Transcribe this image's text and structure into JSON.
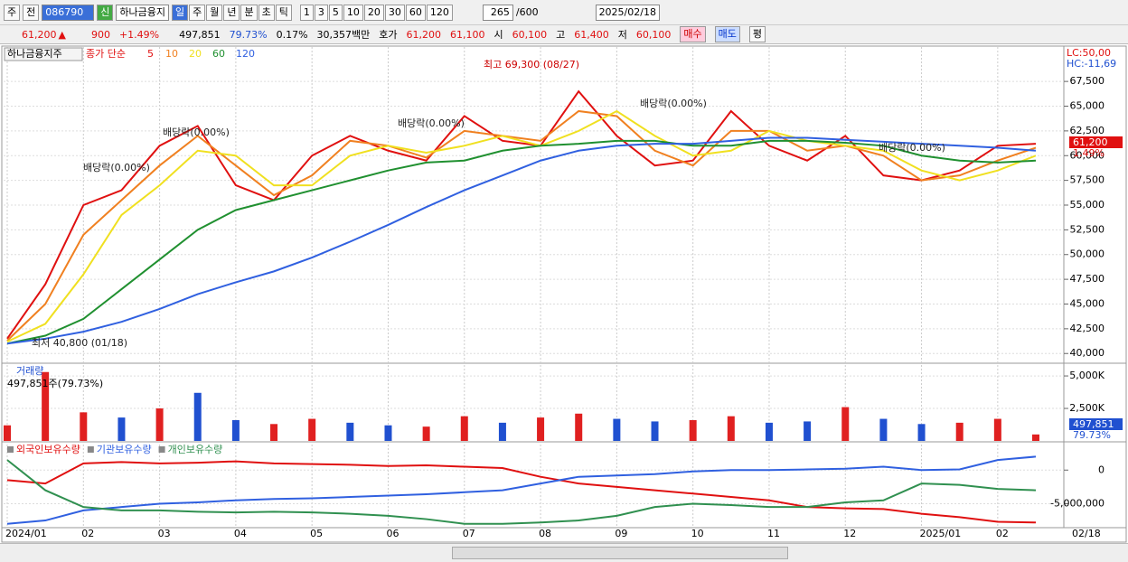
{
  "toolbar": {
    "period": "주",
    "scope": "전",
    "code": "086790",
    "badge": "신",
    "name": "하나금융지",
    "intervals": [
      "일",
      "주",
      "월",
      "년",
      "분",
      "초",
      "틱"
    ],
    "steps": [
      "1",
      "3",
      "5",
      "10",
      "20",
      "30",
      "60",
      "120"
    ],
    "count": "265",
    "max": "/600",
    "date": "2025/02/18"
  },
  "quote_bar": {
    "price": "61,200",
    "arrow": "▲",
    "change": "900",
    "rate": "+1.49%",
    "volume": "497,851",
    "volume_rate": "79.73%",
    "turnover": "0.17%",
    "amount": "30,357백만",
    "ask_label": "호가",
    "ask": "61,200",
    "bid": "61,100",
    "open_label": "시",
    "open": "60,100",
    "high_label": "고",
    "high": "61,400",
    "low_label": "저",
    "low": "60,100",
    "buy": "매수",
    "sell": "매도",
    "avg": "평"
  },
  "chart_data": [
    {
      "type": "line",
      "title": "하나금융지주",
      "legend_prefix": "종가 단순",
      "categories": [
        "2024/01",
        null,
        "02",
        null,
        "03",
        null,
        "04",
        null,
        "05",
        null,
        "06",
        null,
        "07",
        null,
        "08",
        null,
        "09",
        null,
        "10",
        null,
        "11",
        null,
        "12",
        null,
        "2025/01",
        null,
        "02",
        null
      ],
      "last_date": "02/18",
      "series": [
        {
          "name": "5",
          "color": "#e01010",
          "values": [
            41500,
            47000,
            55000,
            56500,
            61000,
            63000,
            57000,
            55500,
            60000,
            62000,
            60500,
            59500,
            64000,
            61500,
            61000,
            66500,
            62000,
            59000,
            59500,
            64500,
            61000,
            59500,
            62000,
            58000,
            57500,
            58500,
            61000,
            61200
          ]
        },
        {
          "name": "10",
          "color": "#f08020",
          "values": [
            41300,
            45000,
            52000,
            55500,
            59000,
            62000,
            59000,
            56000,
            58000,
            61500,
            61000,
            59800,
            62500,
            62000,
            61500,
            64500,
            64000,
            60500,
            59000,
            62500,
            62500,
            60500,
            61000,
            60000,
            57500,
            58000,
            59500,
            60800
          ]
        },
        {
          "name": "20",
          "color": "#f0e020",
          "values": [
            41200,
            43000,
            48000,
            54000,
            57000,
            60500,
            60000,
            57000,
            57000,
            60000,
            61000,
            60300,
            61000,
            62000,
            61000,
            62500,
            64500,
            62000,
            60000,
            60500,
            62500,
            61500,
            61000,
            60500,
            58500,
            57500,
            58500,
            60000
          ]
        },
        {
          "name": "60",
          "color": "#209030",
          "values": [
            41000,
            41800,
            43500,
            46500,
            49500,
            52500,
            54500,
            55500,
            56500,
            57500,
            58500,
            59300,
            59500,
            60500,
            61000,
            61200,
            61500,
            61500,
            61000,
            61000,
            61500,
            61500,
            61300,
            61000,
            60000,
            59500,
            59300,
            59500
          ]
        },
        {
          "name": "120",
          "color": "#3060e0",
          "values": [
            41000,
            41500,
            42200,
            43200,
            44500,
            46000,
            47200,
            48300,
            49700,
            51300,
            53000,
            54800,
            56500,
            58000,
            59500,
            60500,
            61000,
            61200,
            61200,
            61500,
            61800,
            61800,
            61600,
            61400,
            61200,
            61000,
            60800,
            60500
          ]
        }
      ],
      "ylim": [
        39200,
        70800
      ],
      "yticks": [
        {
          "value": 40000,
          "label": "40,000"
        },
        {
          "value": 42500,
          "label": "42,500"
        },
        {
          "value": 45000,
          "label": "45,000"
        },
        {
          "value": 47500,
          "label": "47,500"
        },
        {
          "value": 50000,
          "label": "50,000"
        },
        {
          "value": 52500,
          "label": "52,500"
        },
        {
          "value": 55000,
          "label": "55,000"
        },
        {
          "value": 57500,
          "label": "57,500"
        },
        {
          "value": 60000,
          "label": "60,000"
        },
        {
          "value": 62500,
          "label": "62,500"
        },
        {
          "value": 65000,
          "label": "65,000"
        },
        {
          "value": 67500,
          "label": "67,500"
        }
      ],
      "grid": true,
      "annotations": [
        "최고 69,300 (08/27)",
        "최저 40,800 (01/18)",
        "배당락(0.00%)",
        "배당락(0.00%)",
        "배당락(0.00%)",
        "배당락(0.00%)",
        "배당락(0.00%)"
      ],
      "lc": "LC:50,00",
      "hc": "HC:-11,69",
      "last_label": "61,200",
      "last_change": "1.49%"
    },
    {
      "type": "bar",
      "title": "거래량",
      "subtitle": "497,851주(79.73%)",
      "values": [
        1200,
        5300,
        2200,
        1800,
        2500,
        3700,
        1600,
        1300,
        1700,
        1400,
        1200,
        1100,
        1900,
        1400,
        1800,
        2100,
        1700,
        1500,
        1600,
        1900,
        1400,
        1500,
        2600,
        1700,
        1300,
        1400,
        1700,
        498
      ],
      "colors": [
        "#e02020",
        "#e02020",
        "#e02020",
        "#2050d0",
        "#e02020",
        "#2050d0",
        "#2050d0",
        "#e02020",
        "#e02020",
        "#2050d0",
        "#2050d0",
        "#e02020",
        "#e02020",
        "#2050d0",
        "#e02020",
        "#e02020",
        "#2050d0",
        "#2050d0",
        "#e02020",
        "#e02020",
        "#2050d0",
        "#2050d0",
        "#e02020",
        "#2050d0",
        "#2050d0",
        "#e02020",
        "#e02020",
        "#e02020"
      ],
      "ylim": [
        0,
        5700
      ],
      "yticks": [
        {
          "value": 2500,
          "label": "2,500K"
        },
        {
          "value": 5000,
          "label": "5,000K"
        }
      ],
      "grid": true,
      "last_label": "497,851",
      "last_change": "79.73%"
    },
    {
      "type": "line",
      "series": [
        {
          "name": "외국인보유수량",
          "color": "#e01010",
          "values": [
            -1500000,
            -2000000,
            1000000,
            1200000,
            1000000,
            1100000,
            1300000,
            1000000,
            900000,
            800000,
            600000,
            700000,
            500000,
            300000,
            -1000000,
            -2000000,
            -2500000,
            -3000000,
            -3500000,
            -4000000,
            -4500000,
            -5500000,
            -5700000,
            -5800000,
            -6500000,
            -7000000,
            -7700000,
            -7800000
          ]
        },
        {
          "name": "기관보유수량",
          "color": "#3060e0",
          "values": [
            -8000000,
            -7500000,
            -6000000,
            -5500000,
            -5000000,
            -4800000,
            -4500000,
            -4300000,
            -4200000,
            -4000000,
            -3800000,
            -3600000,
            -3300000,
            -3000000,
            -2000000,
            -1000000,
            -800000,
            -600000,
            -200000,
            0,
            0,
            100000,
            200000,
            500000,
            0,
            100000,
            1500000,
            2000000
          ]
        },
        {
          "name": "개인보유수량",
          "color": "#309050",
          "values": [
            1500000,
            -3000000,
            -5500000,
            -6000000,
            -6000000,
            -6200000,
            -6300000,
            -6200000,
            -6300000,
            -6500000,
            -6800000,
            -7300000,
            -8000000,
            -8000000,
            -7800000,
            -7500000,
            -6800000,
            -5500000,
            -5000000,
            -5200000,
            -5500000,
            -5500000,
            -4800000,
            -4500000,
            -2000000,
            -2200000,
            -2800000,
            -3000000
          ]
        }
      ],
      "ylim": [
        -8300000,
        3800000
      ],
      "yticks": [
        0,
        {
          "value": -5000000,
          "label": "-5,000,000"
        }
      ],
      "grid": true
    }
  ]
}
